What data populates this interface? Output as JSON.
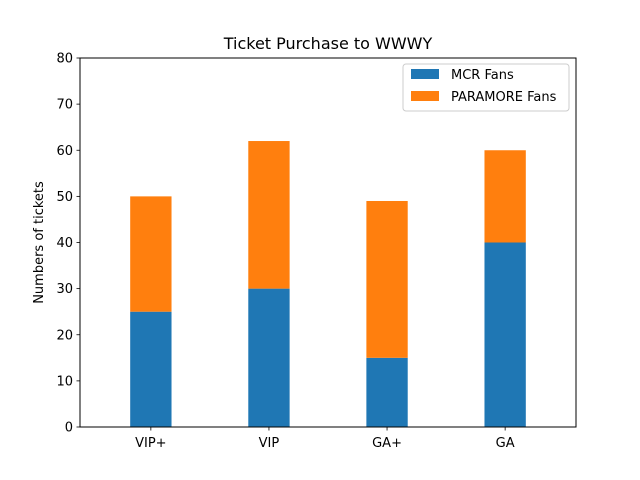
{
  "chart_data": {
    "type": "bar",
    "stacked": true,
    "title": "Ticket Purchase to WWWY",
    "xlabel": "",
    "ylabel": "Numbers of tickets",
    "categories": [
      "VIP+",
      "VIP",
      "GA+",
      "GA"
    ],
    "series": [
      {
        "name": "MCR Fans",
        "values": [
          25,
          30,
          15,
          40
        ],
        "color": "#1f77b4"
      },
      {
        "name": "PARAMORE Fans",
        "values": [
          25,
          32,
          34,
          20
        ],
        "color": "#ff7f0e"
      }
    ],
    "ylim": [
      0,
      80
    ],
    "yticks": [
      0,
      10,
      20,
      30,
      40,
      50,
      60,
      70,
      80
    ],
    "grid": false,
    "legend_position": "top-right"
  }
}
